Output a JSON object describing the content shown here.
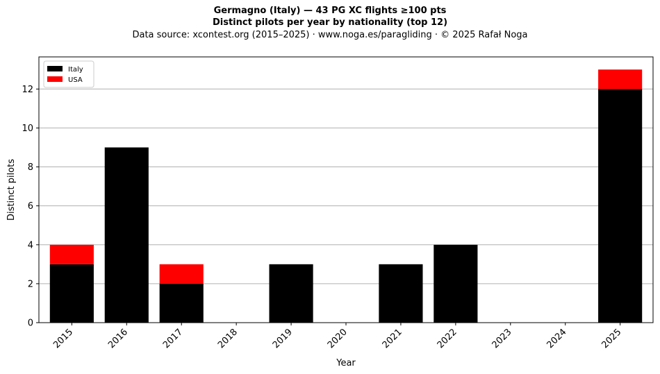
{
  "header": {
    "title": "Germagno (Italy)  —  43 PG XC flights ≥100 pts",
    "subtitle": "Distinct pilots per year by nationality (top 12)",
    "source": "Data source: xcontest.org (2015–2025)  ·  www.noga.es/paragliding  ·  © 2025 Rafał Noga"
  },
  "chart_data": {
    "type": "bar",
    "stacked": true,
    "title": "Germagno (Italy)  —  43 PG XC flights ≥100 pts",
    "subtitle": "Distinct pilots per year by nationality (top 12)",
    "xlabel": "Year",
    "ylabel": "Distinct pilots",
    "categories": [
      "2015",
      "2016",
      "2017",
      "2018",
      "2019",
      "2020",
      "2021",
      "2022",
      "2023",
      "2024",
      "2025"
    ],
    "series": [
      {
        "name": "Italy",
        "color": "#000000",
        "values": [
          3,
          9,
          2,
          0,
          3,
          0,
          3,
          4,
          0,
          0,
          12
        ]
      },
      {
        "name": "USA",
        "color": "#ff0000",
        "values": [
          1,
          0,
          1,
          0,
          0,
          0,
          0,
          0,
          0,
          0,
          1
        ]
      }
    ],
    "ylim": [
      0,
      13.65
    ],
    "yticks": [
      0,
      2,
      4,
      6,
      8,
      10,
      12
    ],
    "grid": "y",
    "legend": "top-left"
  }
}
